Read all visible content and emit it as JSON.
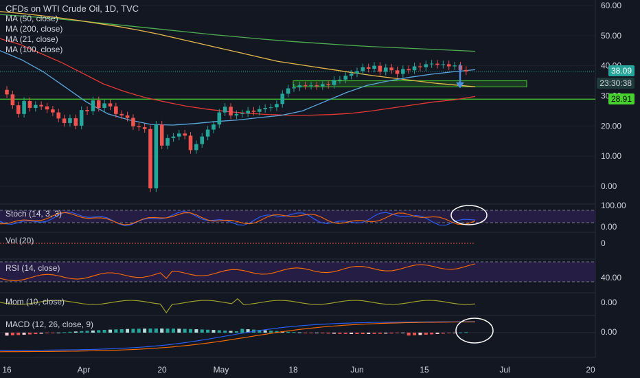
{
  "header": {
    "title": "CFDs on WTI Crude Oil, 1D, TVC",
    "ma_labels": [
      "MA (50, close)",
      "MA (200, close)",
      "MA (21, close)",
      "MA (100, close)"
    ]
  },
  "panes": {
    "stoch_label": "Stoch (14, 3, 3)",
    "vol_label": "Vol (20)",
    "rsi_label": "RSI (14, close)",
    "mom_label": "Mom (10, close)",
    "macd_label": "MACD (12, 26, close, 9)"
  },
  "price_tags": {
    "last": "38.09",
    "countdown": "23:30:38",
    "support": "28.91"
  },
  "colors": {
    "background": "#131722",
    "up": "#26a69a",
    "down": "#ef5350",
    "ma50": "#e8b84a",
    "ma200": "#4caf50",
    "ma21": "#5aa8e0",
    "ma100": "#e53935",
    "green_line": "#46d12f",
    "osc_band": "#2a1f4a"
  },
  "chart_data": {
    "type": "candlestick",
    "title": "CFDs on WTI Crude Oil, 1D, TVC",
    "x_tick_labels": [
      "16",
      "Apr",
      "20",
      "May",
      "18",
      "Jun",
      "15",
      "Jul",
      "20"
    ],
    "y_tick_labels": [
      "60.00",
      "50.00",
      "40.00",
      "30.00",
      "20.00",
      "10.00",
      "0.00"
    ],
    "y_range": [
      -3,
      62
    ],
    "closes": [
      30.5,
      26.9,
      24.0,
      28.3,
      26.0,
      27.0,
      26.5,
      25.5,
      24.5,
      22.5,
      21.0,
      22.6,
      20.1,
      25.3,
      24.9,
      28.5,
      26.0,
      27.5,
      26.5,
      24.0,
      23.5,
      22.7,
      19.9,
      19.6,
      19.0,
      -0.7,
      20.5,
      13.5,
      16.0,
      16.5,
      17.5,
      16.8,
      12.0,
      14.0,
      16.5,
      18.8,
      20.5,
      24.5,
      26.4,
      23.5,
      24.0,
      24.2,
      25.1,
      24.7,
      25.6,
      26.0,
      26.2,
      27.3,
      30.7,
      32.5,
      32.8,
      33.5,
      33.3,
      33.5,
      33.2,
      33.9,
      33.6,
      35.3,
      35.4,
      36.7,
      37.4,
      38.2,
      39.5,
      39.0,
      40.0,
      38.0,
      39.4,
      38.5,
      37.3,
      38.9,
      38.5,
      39.8,
      39.5,
      40.5,
      40.7,
      40.3,
      40.5,
      39.8,
      40.1,
      38.6,
      38.1
    ],
    "ma50": [
      58,
      57.4,
      56.7,
      55.9,
      55,
      54,
      53,
      51.8,
      50.5,
      49,
      47.5,
      46,
      44.5,
      43,
      41.5,
      40.5,
      39.5,
      38.5,
      37.5,
      36.6,
      35.8,
      35,
      34.2,
      33.6,
      33
    ],
    "ma200": [
      57,
      56.4,
      55.7,
      54.9,
      54,
      53.1,
      52.2,
      51.3,
      50.4,
      49.6,
      48.8,
      48.1,
      47.5,
      46.9,
      46.4,
      46,
      45.6,
      45.2,
      44.8
    ],
    "ma21": [
      45,
      42,
      38,
      33,
      28,
      24,
      22,
      20.5,
      20.3,
      20.8,
      21.5,
      22,
      22.8,
      23.5,
      25,
      28,
      31,
      33.5,
      35,
      36.2,
      37.2,
      38,
      38.7
    ],
    "ma100": [
      49,
      47,
      44,
      41,
      37.5,
      34,
      31.5,
      29.5,
      28,
      26.6,
      25.6,
      24.8,
      24.2,
      23.8,
      23.6,
      23.6,
      23.8,
      24.2,
      25,
      26,
      27,
      28,
      28.7,
      29.8
    ],
    "horizontal_levels": [
      30.0,
      38.0
    ],
    "support_zone": [
      33.0,
      35.0
    ],
    "oscillators": {
      "stoch_ticks": [
        "100.00",
        "0.00"
      ],
      "vol_ticks": [
        "0"
      ],
      "rsi_ticks": [
        "40.00"
      ],
      "mom_ticks": [
        "0.00"
      ],
      "macd_ticks": [
        "0.00"
      ]
    }
  }
}
